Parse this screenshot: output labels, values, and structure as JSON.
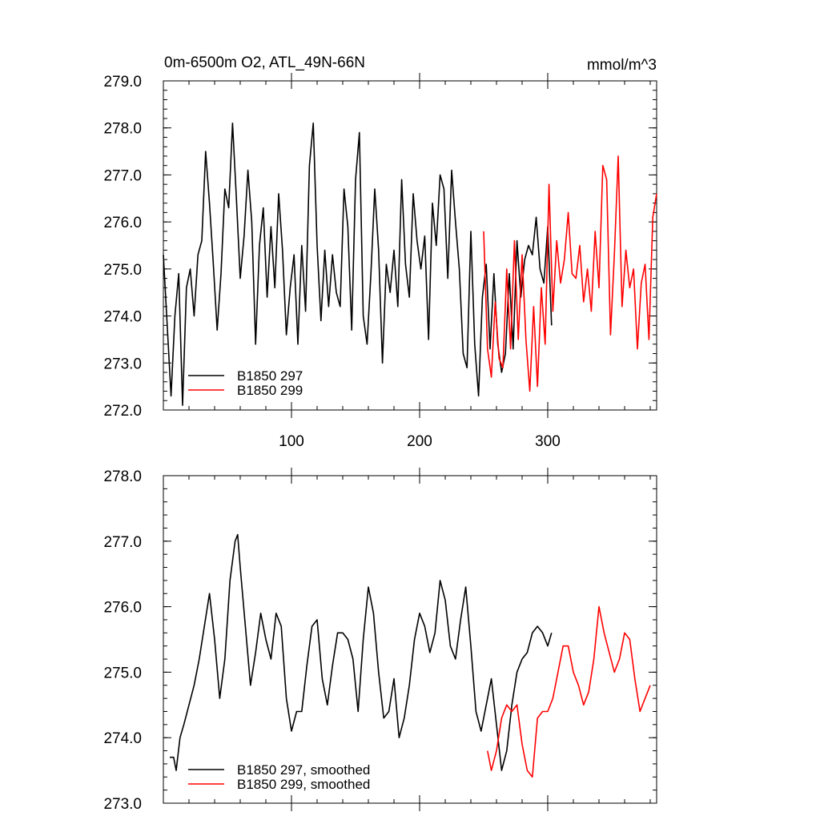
{
  "chart_data": [
    {
      "type": "line",
      "title": "0m-6500m O2, ATL_49N-66N",
      "units": "mmol/m^3",
      "xlim": [
        0,
        385
      ],
      "ylim": [
        272.0,
        279.0
      ],
      "yticks": [
        {
          "value": 272.0,
          "label": "272.0"
        },
        {
          "value": 273.0,
          "label": "273.0"
        },
        {
          "value": 274.0,
          "label": "274.0"
        },
        {
          "value": 275.0,
          "label": "275.0"
        },
        {
          "value": 276.0,
          "label": "276.0"
        },
        {
          "value": 277.0,
          "label": "277.0"
        },
        {
          "value": 278.0,
          "label": "278.0"
        },
        {
          "value": 279.0,
          "label": "279.0"
        }
      ],
      "xticks": [
        {
          "value": 100,
          "label": "100"
        },
        {
          "value": 200,
          "label": "200"
        },
        {
          "value": 300,
          "label": "300"
        }
      ],
      "legend_location": "bottom-left",
      "series": [
        {
          "name": "B1850 297",
          "color": "#000000",
          "x": [
            0,
            3,
            6,
            9,
            12,
            15,
            18,
            21,
            24,
            27,
            30,
            33,
            36,
            39,
            42,
            45,
            48,
            51,
            54,
            57,
            60,
            63,
            66,
            69,
            72,
            75,
            78,
            81,
            84,
            87,
            90,
            93,
            96,
            99,
            102,
            105,
            108,
            111,
            114,
            117,
            120,
            123,
            126,
            129,
            132,
            135,
            138,
            141,
            144,
            147,
            150,
            153,
            156,
            159,
            162,
            165,
            168,
            171,
            174,
            177,
            180,
            183,
            186,
            189,
            192,
            195,
            198,
            201,
            204,
            207,
            210,
            213,
            216,
            219,
            222,
            225,
            228,
            231,
            234,
            237,
            240,
            243,
            246,
            249,
            252,
            255,
            258,
            261,
            264,
            267,
            270,
            273,
            276,
            279,
            282,
            285,
            288,
            291,
            294,
            297,
            300,
            303
          ],
          "y": [
            275.3,
            273.8,
            272.3,
            274.0,
            274.9,
            272.1,
            274.6,
            275.0,
            274.0,
            275.3,
            275.6,
            277.5,
            276.4,
            275.1,
            273.7,
            274.9,
            276.7,
            276.3,
            278.1,
            276.5,
            274.8,
            275.7,
            277.1,
            276.0,
            273.4,
            275.5,
            276.3,
            274.4,
            275.9,
            274.6,
            276.6,
            275.4,
            273.6,
            274.6,
            275.3,
            273.4,
            275.5,
            274.1,
            277.2,
            278.1,
            275.5,
            273.9,
            275.4,
            274.2,
            275.3,
            274.5,
            274.2,
            276.7,
            275.9,
            273.7,
            276.9,
            277.9,
            274.0,
            273.4,
            274.9,
            276.7,
            275.4,
            273.0,
            275.1,
            274.5,
            275.4,
            274.2,
            276.9,
            275.1,
            274.4,
            276.6,
            275.6,
            275.0,
            275.7,
            273.5,
            276.4,
            275.5,
            277.0,
            276.7,
            274.8,
            277.1,
            276.0,
            275.0,
            273.2,
            272.9,
            275.8,
            273.4,
            272.3,
            274.4,
            275.1,
            273.3,
            274.9,
            273.4,
            272.8,
            273.2,
            274.9,
            273.3,
            275.6,
            274.4,
            275.2,
            275.5,
            275.3,
            276.1,
            275.0,
            274.7,
            275.9,
            273.8
          ]
        },
        {
          "name": "B1850 299",
          "color": "#ff0000",
          "x": [
            250,
            253,
            256,
            259,
            262,
            265,
            268,
            271,
            274,
            277,
            280,
            283,
            286,
            289,
            292,
            295,
            298,
            301,
            304,
            307,
            310,
            313,
            316,
            319,
            322,
            325,
            328,
            331,
            334,
            337,
            340,
            343,
            346,
            349,
            352,
            355,
            358,
            361,
            364,
            367,
            370,
            373,
            376,
            379,
            382,
            385
          ],
          "y": [
            275.8,
            273.3,
            272.7,
            274.3,
            273.1,
            272.9,
            275.0,
            273.3,
            275.6,
            273.5,
            275.3,
            273.5,
            272.4,
            274.2,
            272.5,
            274.6,
            273.4,
            276.8,
            274.1,
            275.6,
            274.7,
            275.2,
            276.2,
            274.9,
            274.8,
            275.5,
            274.3,
            275.0,
            274.1,
            275.8,
            274.6,
            277.2,
            276.9,
            273.6,
            275.3,
            277.4,
            274.2,
            275.4,
            274.6,
            275.0,
            273.3,
            274.7,
            275.1,
            273.5,
            276.1,
            276.6
          ]
        }
      ]
    },
    {
      "type": "line",
      "title": "",
      "xlim": [
        0,
        385
      ],
      "ylim": [
        273.0,
        278.0
      ],
      "yticks": [
        {
          "value": 273.0,
          "label": "273.0"
        },
        {
          "value": 274.0,
          "label": "274.0"
        },
        {
          "value": 275.0,
          "label": "275.0"
        },
        {
          "value": 276.0,
          "label": "276.0"
        },
        {
          "value": 277.0,
          "label": "277.0"
        },
        {
          "value": 278.0,
          "label": "278.0"
        }
      ],
      "xticks": [
        {
          "value": 100,
          "label": ""
        },
        {
          "value": 200,
          "label": ""
        },
        {
          "value": 300,
          "label": ""
        }
      ],
      "legend_location": "bottom-left",
      "series": [
        {
          "name": "B1850 297, smoothed",
          "color": "#000000",
          "x": [
            5,
            8,
            10,
            13,
            16,
            20,
            24,
            28,
            32,
            36,
            40,
            44,
            48,
            52,
            56,
            58,
            60,
            64,
            68,
            72,
            76,
            80,
            84,
            88,
            92,
            96,
            100,
            104,
            108,
            112,
            116,
            120,
            124,
            128,
            132,
            136,
            140,
            144,
            148,
            152,
            156,
            160,
            164,
            168,
            172,
            176,
            180,
            184,
            188,
            192,
            196,
            200,
            204,
            208,
            212,
            216,
            220,
            224,
            228,
            232,
            236,
            240,
            244,
            248,
            252,
            256,
            260,
            264,
            268,
            272,
            276,
            280,
            284,
            288,
            292,
            296,
            300,
            303
          ],
          "y": [
            273.7,
            273.7,
            273.5,
            274.0,
            274.2,
            274.5,
            274.8,
            275.2,
            275.7,
            276.2,
            275.5,
            274.6,
            275.2,
            276.4,
            277.0,
            277.1,
            276.6,
            275.7,
            274.8,
            275.3,
            275.9,
            275.5,
            275.2,
            275.9,
            275.7,
            274.6,
            274.1,
            274.4,
            274.4,
            275.1,
            275.7,
            275.8,
            274.9,
            274.5,
            275.1,
            275.6,
            275.6,
            275.5,
            275.2,
            274.4,
            275.5,
            276.3,
            275.9,
            275.0,
            274.3,
            274.4,
            274.9,
            274.0,
            274.3,
            274.8,
            275.5,
            275.9,
            275.7,
            275.3,
            275.6,
            276.4,
            276.1,
            275.4,
            275.2,
            275.8,
            276.3,
            275.4,
            274.4,
            274.1,
            274.5,
            274.9,
            274.2,
            273.5,
            273.8,
            274.5,
            275.0,
            275.2,
            275.3,
            275.6,
            275.7,
            275.6,
            275.4,
            275.6
          ]
        },
        {
          "name": "B1850 299, smoothed",
          "color": "#ff0000",
          "x": [
            253,
            256,
            260,
            264,
            268,
            272,
            276,
            280,
            284,
            288,
            292,
            296,
            300,
            304,
            308,
            312,
            316,
            320,
            324,
            328,
            332,
            336,
            340,
            344,
            348,
            352,
            356,
            360,
            364,
            368,
            372,
            376,
            380
          ],
          "y": [
            273.8,
            273.5,
            273.8,
            274.3,
            274.5,
            274.4,
            274.5,
            273.9,
            273.5,
            273.4,
            274.3,
            274.4,
            274.4,
            274.6,
            275.0,
            275.4,
            275.4,
            275.0,
            274.8,
            274.5,
            274.7,
            275.2,
            276.0,
            275.6,
            275.3,
            275.0,
            275.2,
            275.6,
            275.5,
            274.9,
            274.4,
            274.6,
            274.8
          ]
        }
      ]
    }
  ]
}
